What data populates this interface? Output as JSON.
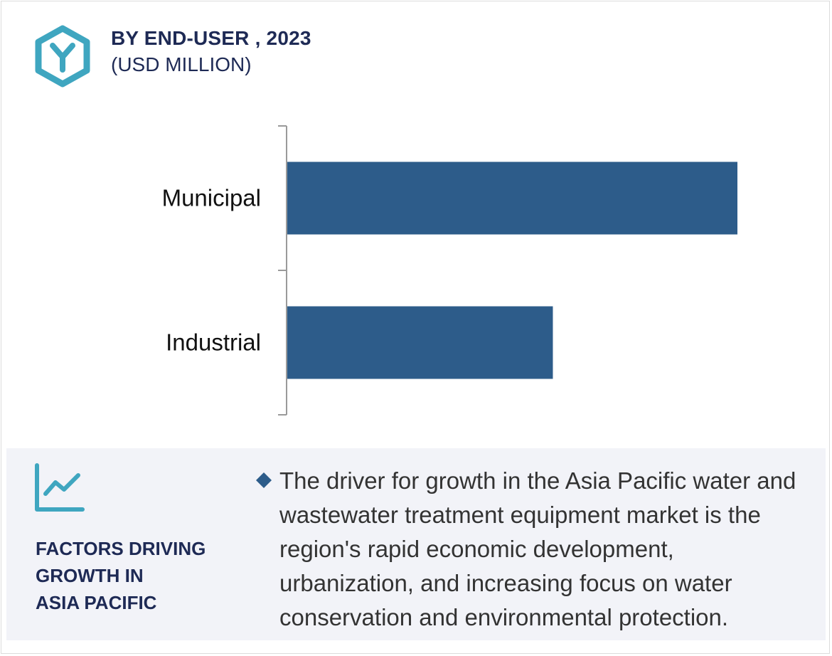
{
  "header": {
    "title": "BY END-USER , 2023",
    "subtitle": "(USD MILLION)"
  },
  "colors": {
    "bar": "#2d5c8a",
    "accent": "#3fa6c0",
    "heading": "#1e2a55",
    "axis": "#9a9a9a"
  },
  "icons": {
    "logo": "hexagon-y-logo-icon",
    "growth": "line-chart-icon",
    "bullet": "diamond-bullet-icon"
  },
  "chart_data": {
    "type": "bar",
    "orientation": "horizontal",
    "categories": [
      "Municipal",
      "Industrial"
    ],
    "values": [
      100,
      59
    ],
    "xlim": [
      0,
      100
    ],
    "grid": false,
    "legend": "none",
    "title": "BY END-USER , 2023",
    "xlabel": "",
    "ylabel": ""
  },
  "factors": {
    "heading_lines": [
      "FACTORS DRIVING",
      "GROWTH IN",
      "ASIA PACIFIC"
    ],
    "driver_text": "The driver for growth in the Asia Pacific water and wastewater treatment equipment market is the region's rapid economic development, urbanization, and increasing focus on water conservation and environmental protection."
  }
}
